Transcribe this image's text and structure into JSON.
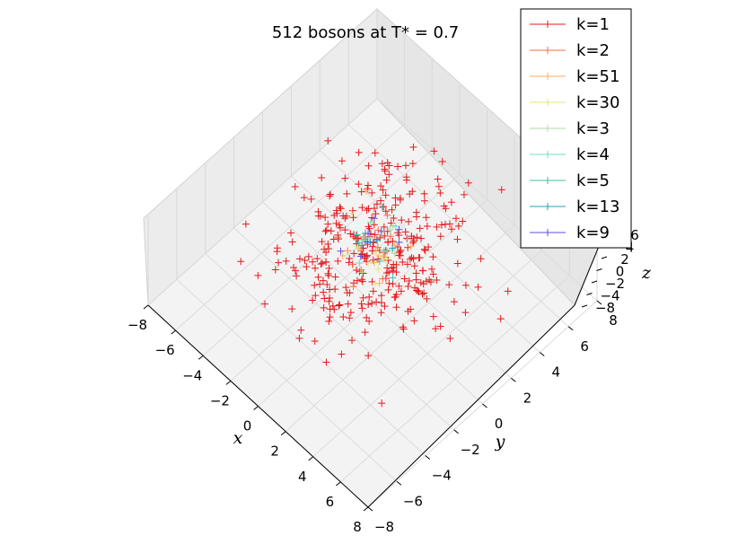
{
  "chart_data": {
    "type": "scatter",
    "projection": "3d",
    "title": "512 bosons at T* = 0.7",
    "xlabel": "x",
    "ylabel": "y",
    "zlabel": "z",
    "xlim": [
      -8,
      8
    ],
    "ylim": [
      -8,
      8
    ],
    "zlim": [
      -8,
      8
    ],
    "x_ticks": [
      "−8",
      "−6",
      "−4",
      "−2",
      "0",
      "2",
      "4",
      "6",
      "8"
    ],
    "y_ticks": [
      "−8",
      "−6",
      "−4",
      "−2",
      "0",
      "2",
      "4",
      "6",
      "8"
    ],
    "z_ticks": [
      "−8",
      "−4",
      "−2",
      "0",
      "2",
      "4",
      "6"
    ],
    "grid": true,
    "legend_position": "top-right",
    "series": [
      {
        "name": "k=1",
        "color": "#e41a1c",
        "count": 340,
        "spread": 2.3
      },
      {
        "name": "k=2",
        "color": "#f46d43",
        "count": 14,
        "spread": 1.2
      },
      {
        "name": "k=51",
        "color": "#fdae61",
        "count": 10,
        "spread": 1.0
      },
      {
        "name": "k=30",
        "color": "#e6e67a",
        "count": 8,
        "spread": 1.0
      },
      {
        "name": "k=3",
        "color": "#abdda4",
        "count": 8,
        "spread": 1.0
      },
      {
        "name": "k=4",
        "color": "#66e0c8",
        "count": 6,
        "spread": 0.9
      },
      {
        "name": "k=5",
        "color": "#3fbfa5",
        "count": 6,
        "spread": 0.9
      },
      {
        "name": "k=13",
        "color": "#2b9bbf",
        "count": 5,
        "spread": 0.9
      },
      {
        "name": "k=9",
        "color": "#5e4fe0",
        "count": 8,
        "spread": 0.9
      }
    ]
  }
}
